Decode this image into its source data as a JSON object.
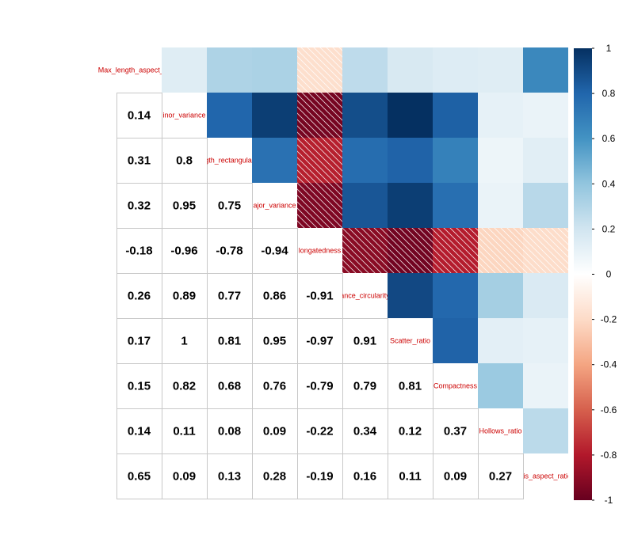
{
  "chart_data": {
    "type": "heatmap",
    "variables": [
      "Max_length_aspect_ratio",
      "Minor_variance",
      "Length_rectangular",
      "Major_variance",
      "Elongatedness",
      "Distance_circularity",
      "Scatter_ratio",
      "Compactness",
      "Hollows_ratio",
      "Axis_aspect_ratio"
    ],
    "diagonal_labels": [
      "Max_length_aspect_ratio",
      "inor_variance",
      "gth_rectangular",
      "ajor_variance",
      "longatedness",
      "ance_circularity",
      "Scatter_ratio",
      "Compactness",
      "Hollows_ratio",
      "xis_aspect_ratio"
    ],
    "lower_labels": [
      [],
      [
        "0.14"
      ],
      [
        "0.31",
        "0.8"
      ],
      [
        "0.32",
        "0.95",
        "0.75"
      ],
      [
        "-0.18",
        "-0.96",
        "-0.78",
        "-0.94"
      ],
      [
        "0.26",
        "0.89",
        "0.77",
        "0.86",
        "-0.91"
      ],
      [
        "0.17",
        "1",
        "0.81",
        "0.95",
        "-0.97",
        "0.91"
      ],
      [
        "0.15",
        "0.82",
        "0.68",
        "0.76",
        "-0.79",
        "0.79",
        "0.81"
      ],
      [
        "0.14",
        "0.11",
        "0.08",
        "0.09",
        "-0.22",
        "0.34",
        "0.12",
        "0.37"
      ],
      [
        "0.65",
        "0.09",
        "0.13",
        "0.28",
        "-0.19",
        "0.16",
        "0.11",
        "0.09",
        "0.27"
      ]
    ],
    "upper_method": "color",
    "lower_method": "number",
    "negative_hatch": true,
    "colorbar": {
      "range": [
        -1,
        1
      ],
      "ticks": [
        "1",
        "0.8",
        "0.6",
        "0.4",
        "0.2",
        "0",
        "-0.2",
        "-0.4",
        "-0.6",
        "-0.8",
        "-1"
      ],
      "colors": [
        "#67001F",
        "#B2182B",
        "#D6604D",
        "#F4A582",
        "#FDDBC7",
        "#FFFFFF",
        "#D1E5F0",
        "#92C5DE",
        "#4393C3",
        "#2166AC",
        "#053061"
      ]
    }
  }
}
